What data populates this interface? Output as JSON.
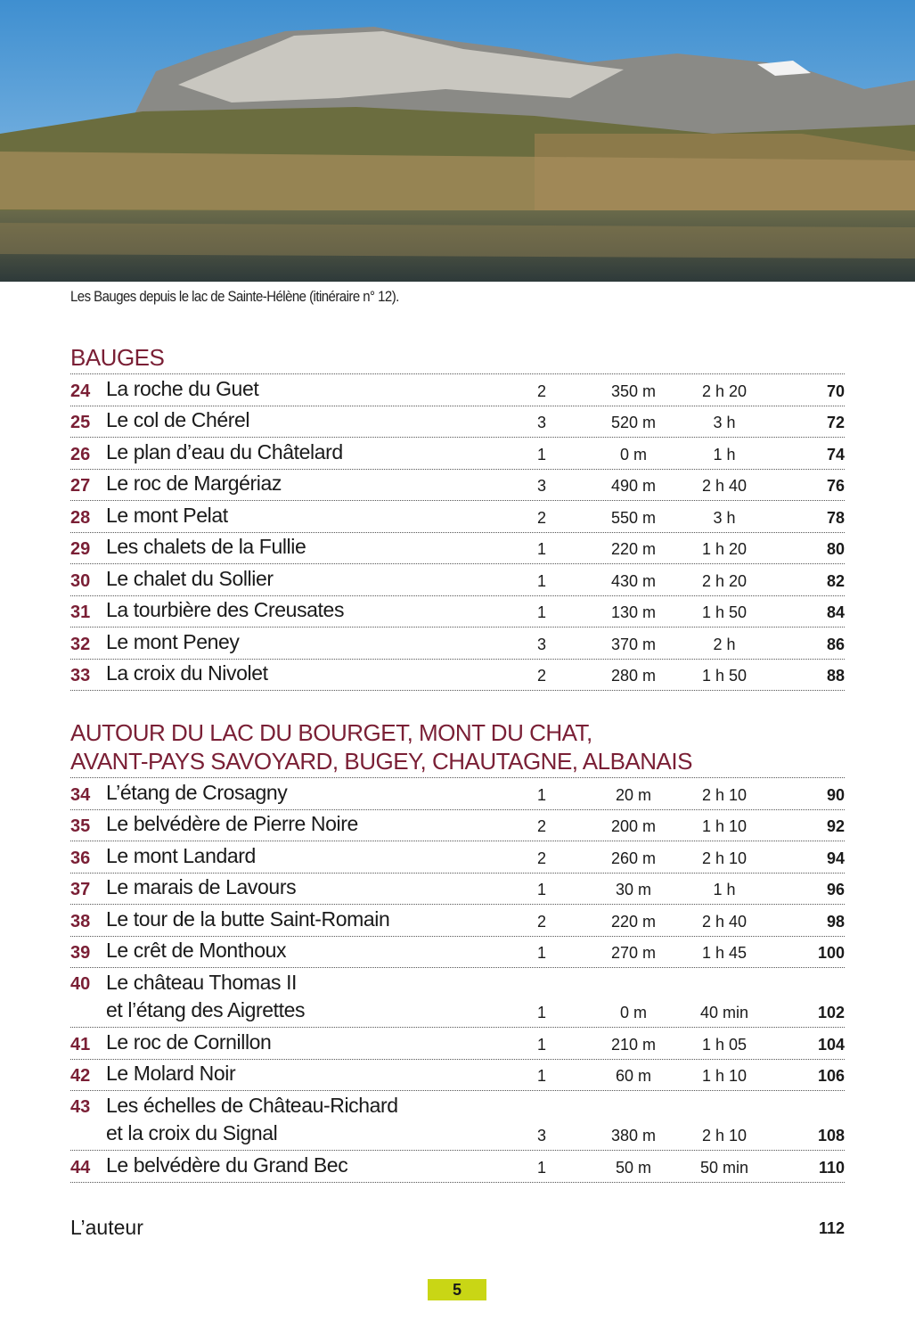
{
  "photo": {
    "caption": "Les Bauges depuis le lac de Sainte-Hélène (itinéraire n° 12)."
  },
  "colors": {
    "accent": "#7a1f35",
    "folio": "#c9d615"
  },
  "sections": [
    {
      "title_lines": [
        "BAUGES"
      ],
      "items": [
        {
          "num": "24",
          "title": [
            "La roche du Guet"
          ],
          "difficulty": "2",
          "elevation": "350 m",
          "time": "2 h 20",
          "page": "70"
        },
        {
          "num": "25",
          "title": [
            "Le col de Chérel"
          ],
          "difficulty": "3",
          "elevation": "520 m",
          "time": "3 h",
          "page": "72"
        },
        {
          "num": "26",
          "title": [
            "Le plan d’eau du Châtelard"
          ],
          "difficulty": "1",
          "elevation": "0 m",
          "time": "1 h",
          "page": "74"
        },
        {
          "num": "27",
          "title": [
            "Le roc de Margériaz"
          ],
          "difficulty": "3",
          "elevation": "490 m",
          "time": "2 h 40",
          "page": "76"
        },
        {
          "num": "28",
          "title": [
            "Le mont Pelat"
          ],
          "difficulty": "2",
          "elevation": "550 m",
          "time": "3 h",
          "page": "78"
        },
        {
          "num": "29",
          "title": [
            "Les chalets de la Fullie"
          ],
          "difficulty": "1",
          "elevation": "220 m",
          "time": "1 h 20",
          "page": "80"
        },
        {
          "num": "30",
          "title": [
            "Le chalet du Sollier"
          ],
          "difficulty": "1",
          "elevation": "430 m",
          "time": "2 h 20",
          "page": "82"
        },
        {
          "num": "31",
          "title": [
            "La tourbière des Creusates"
          ],
          "difficulty": "1",
          "elevation": "130 m",
          "time": "1 h 50",
          "page": "84"
        },
        {
          "num": "32",
          "title": [
            "Le mont Peney"
          ],
          "difficulty": "3",
          "elevation": "370 m",
          "time": "2 h",
          "page": "86"
        },
        {
          "num": "33",
          "title": [
            "La croix du Nivolet"
          ],
          "difficulty": "2",
          "elevation": "280 m",
          "time": "1 h 50",
          "page": "88"
        }
      ]
    },
    {
      "title_lines": [
        "AUTOUR DU LAC DU BOURGET, MONT DU CHAT,",
        "AVANT-PAYS SAVOYARD, BUGEY, CHAUTAGNE, ALBANAIS"
      ],
      "items": [
        {
          "num": "34",
          "title": [
            "L’étang de Crosagny"
          ],
          "difficulty": "1",
          "elevation": "20 m",
          "time": "2 h 10",
          "page": "90"
        },
        {
          "num": "35",
          "title": [
            "Le belvédère de Pierre Noire"
          ],
          "difficulty": "2",
          "elevation": "200 m",
          "time": "1 h 10",
          "page": "92"
        },
        {
          "num": "36",
          "title": [
            "Le mont Landard"
          ],
          "difficulty": "2",
          "elevation": "260 m",
          "time": "2 h 10",
          "page": "94"
        },
        {
          "num": "37",
          "title": [
            "Le marais de Lavours"
          ],
          "difficulty": "1",
          "elevation": "30 m",
          "time": "1 h",
          "page": "96"
        },
        {
          "num": "38",
          "title": [
            "Le tour de la butte Saint-Romain"
          ],
          "difficulty": "2",
          "elevation": "220 m",
          "time": "2 h 40",
          "page": "98"
        },
        {
          "num": "39",
          "title": [
            "Le crêt de Monthoux"
          ],
          "difficulty": "1",
          "elevation": "270 m",
          "time": "1 h 45",
          "page": "100"
        },
        {
          "num": "40",
          "title": [
            "Le château Thomas II",
            "et l’étang des Aigrettes"
          ],
          "difficulty": "1",
          "elevation": "0 m",
          "time": "40 min",
          "page": "102"
        },
        {
          "num": "41",
          "title": [
            "Le roc de Cornillon"
          ],
          "difficulty": "1",
          "elevation": "210 m",
          "time": "1 h 05",
          "page": "104"
        },
        {
          "num": "42",
          "title": [
            "Le Molard Noir"
          ],
          "difficulty": "1",
          "elevation": "60 m",
          "time": "1 h 10",
          "page": "106"
        },
        {
          "num": "43",
          "title": [
            "Les échelles de Château-Richard",
            "et la croix du Signal"
          ],
          "difficulty": "3",
          "elevation": "380 m",
          "time": "2 h 10",
          "page": "108"
        },
        {
          "num": "44",
          "title": [
            "Le belvédère du Grand Bec"
          ],
          "difficulty": "1",
          "elevation": "50 m",
          "time": "50 min",
          "page": "110"
        }
      ]
    }
  ],
  "author": {
    "label": "L’auteur",
    "page": "112"
  },
  "folio": "5"
}
